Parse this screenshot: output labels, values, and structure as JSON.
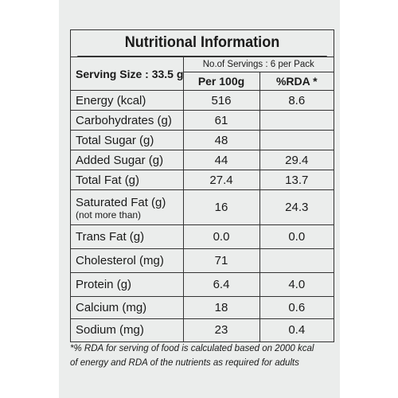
{
  "label": {
    "title": "Nutritional Information",
    "serving_size": "Serving Size : 33.5 g",
    "servings_count": "No.of Servings : 6 per Pack",
    "columns": [
      "Per 100g",
      "%RDA *"
    ],
    "rows": [
      {
        "name": "Energy (kcal)",
        "per100g": "516",
        "rda": "8.6"
      },
      {
        "name": "Carbohydrates (g)",
        "per100g": "61",
        "rda": ""
      },
      {
        "name": "Total Sugar (g)",
        "per100g": "48",
        "rda": ""
      },
      {
        "name": "Added Sugar (g)",
        "per100g": "44",
        "rda": "29.4"
      },
      {
        "name": "Total Fat (g)",
        "per100g": "27.4",
        "rda": "13.7"
      },
      {
        "name": "Saturated Fat (g)",
        "note": "(not more than)",
        "per100g": "16",
        "rda": "24.3"
      },
      {
        "name": "Trans Fat (g)",
        "per100g": "0.0",
        "rda": "0.0"
      },
      {
        "name": "Cholesterol (mg)",
        "per100g": "71",
        "rda": ""
      },
      {
        "name": "Protein (g)",
        "per100g": "6.4",
        "rda": "4.0"
      },
      {
        "name": "Calcium (mg)",
        "per100g": "18",
        "rda": "0.6"
      },
      {
        "name": "Sodium (mg)",
        "per100g": "23",
        "rda": "0.4"
      }
    ],
    "footnote_line1": "*% RDA for serving of food is calculated based on 2000 kcal",
    "footnote_line2": "of energy and RDA of the nutrients as required for adults"
  }
}
